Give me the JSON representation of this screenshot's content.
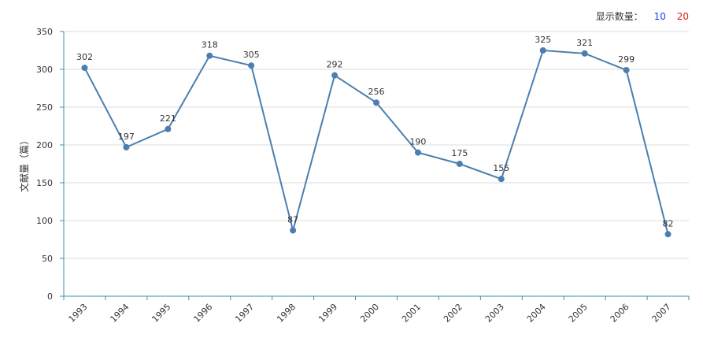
{
  "controls": {
    "label": "显示数量：",
    "option_10": "10",
    "option_20": "20",
    "color_10": "#1f3cff",
    "color_20": "#e0201b"
  },
  "colors": {
    "line": "#4a7fb0",
    "axis": "#3a8fb0",
    "grid": "#dddddd"
  },
  "chart_data": {
    "type": "line",
    "title": "",
    "xlabel": "",
    "ylabel": "文献量（篇）",
    "ylim": [
      0,
      350
    ],
    "yticks": [
      0,
      50,
      100,
      150,
      200,
      250,
      300,
      350
    ],
    "grid": true,
    "categories": [
      "1993",
      "1994",
      "1995",
      "1996",
      "1997",
      "1998",
      "1999",
      "2000",
      "2001",
      "2002",
      "2003",
      "2004",
      "2005",
      "2006",
      "2007"
    ],
    "series": [
      {
        "values": [
          302,
          197,
          221,
          318,
          305,
          87,
          292,
          256,
          190,
          175,
          155,
          325,
          321,
          299,
          82
        ]
      }
    ]
  }
}
